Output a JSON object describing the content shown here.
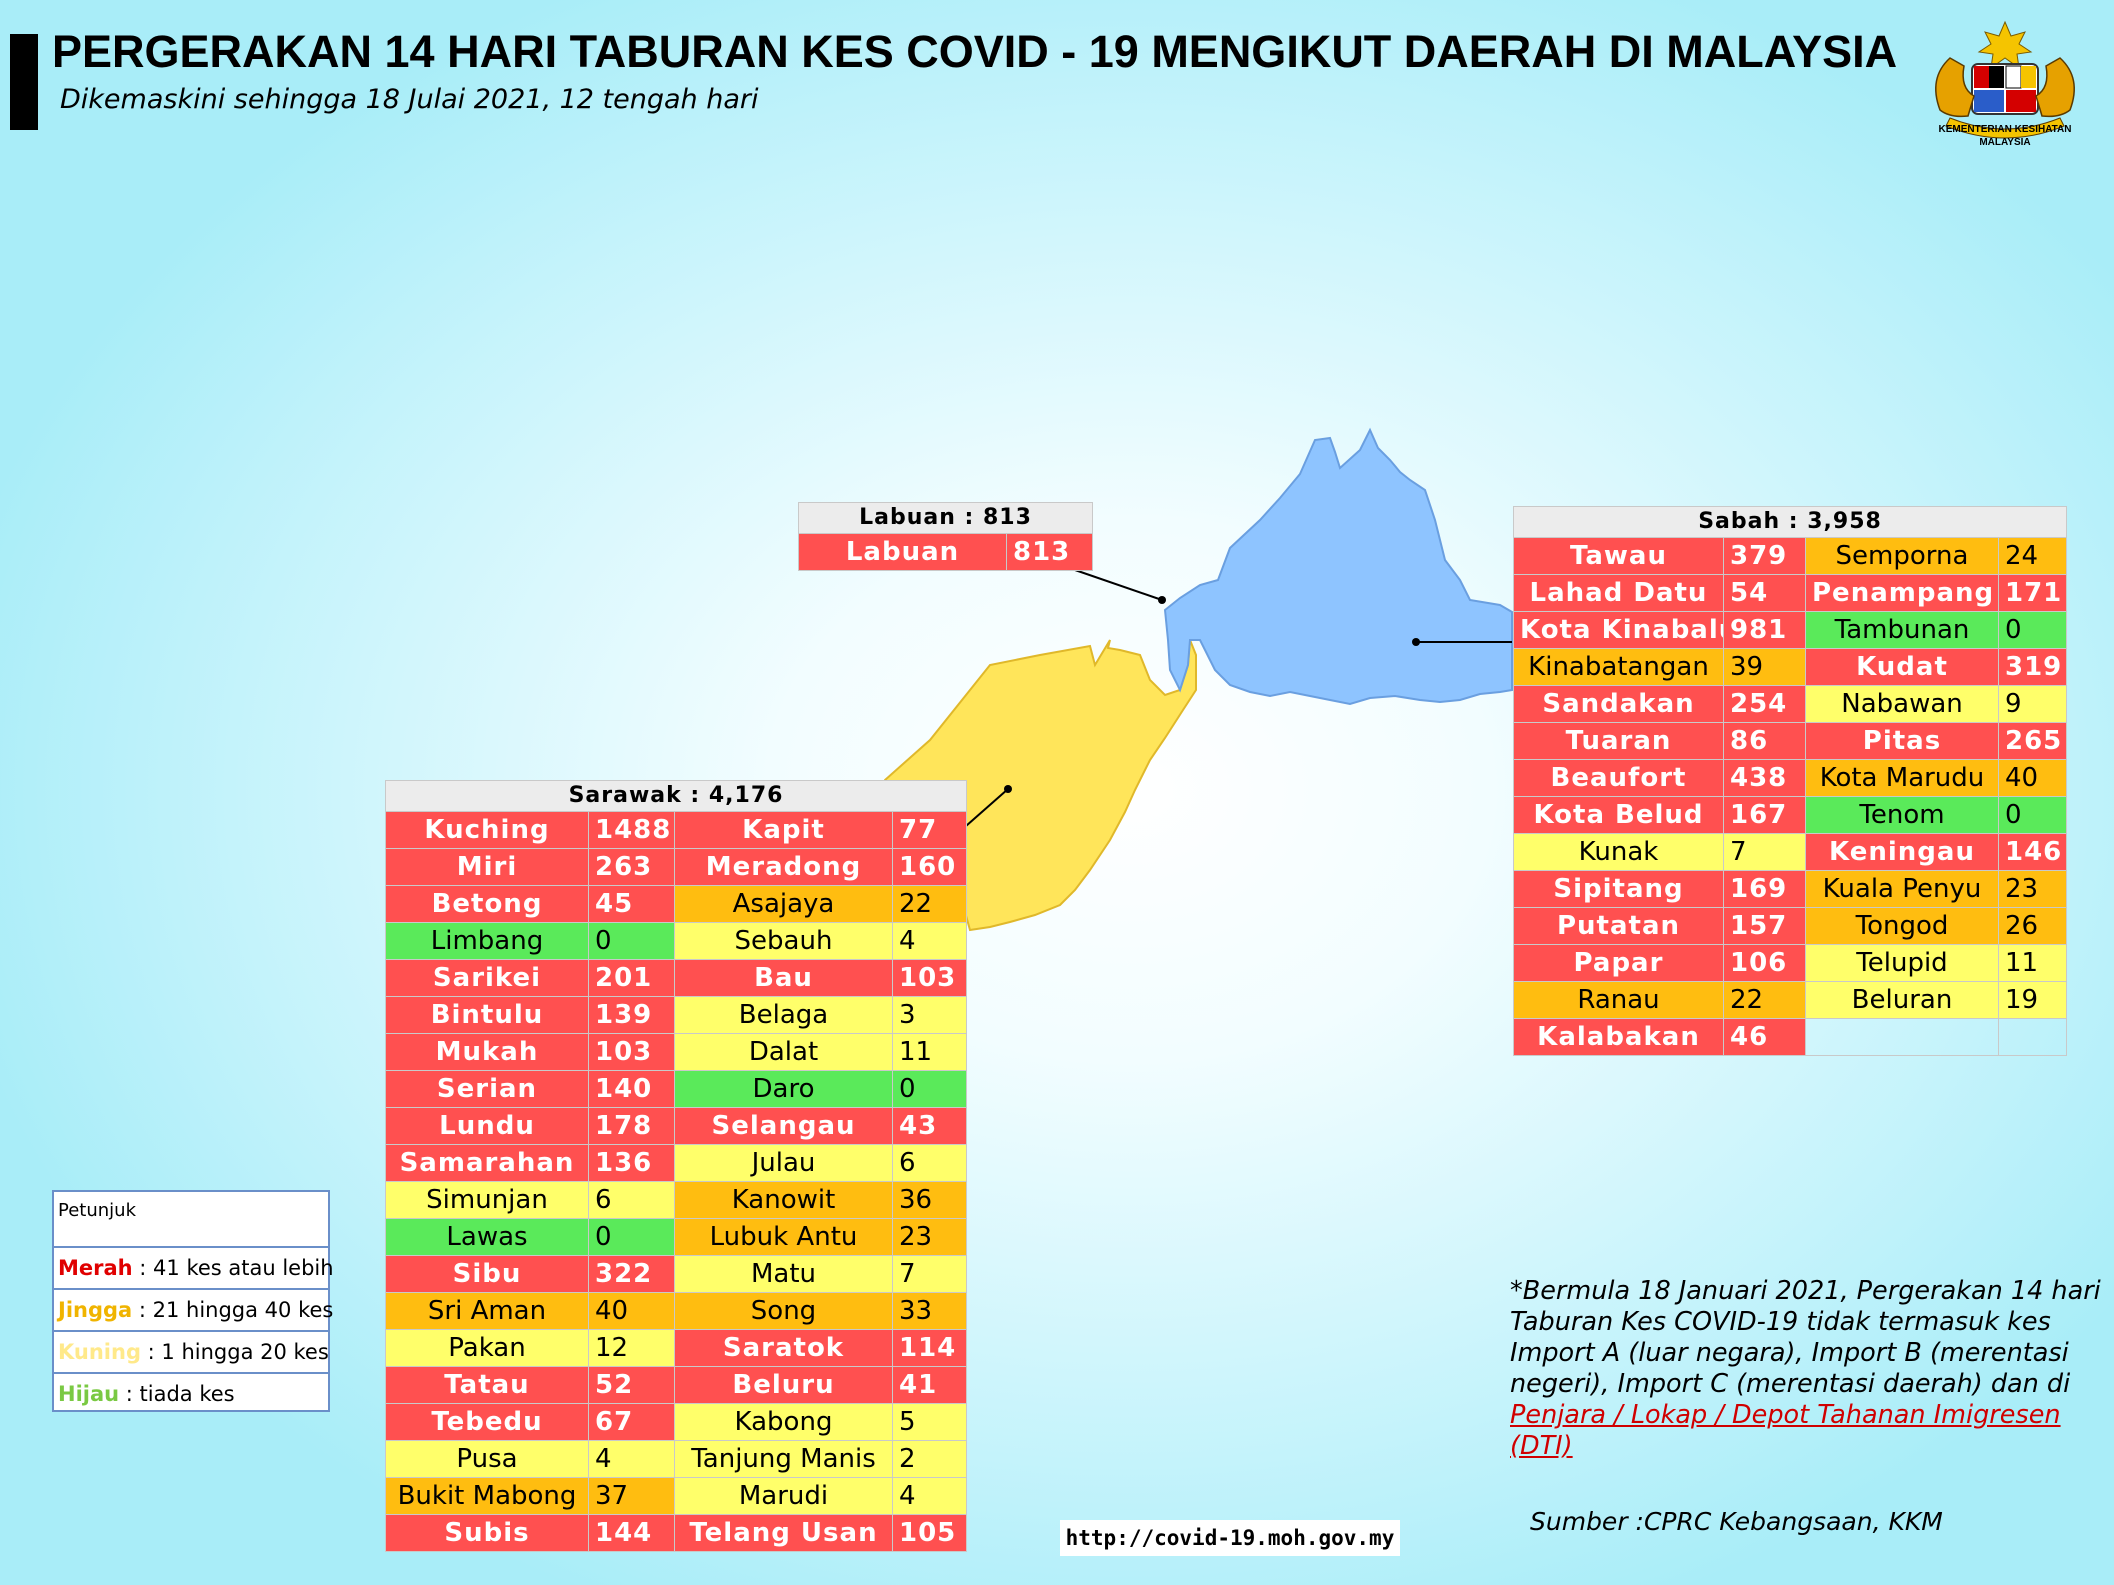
{
  "header": {
    "title": "PERGERAKAN 14 HARI TABURAN KES COVID - 19 MENGIKUT DAERAH DI MALAYSIA",
    "subtitle": "Dikemaskini sehingga 18 Julai 2021, 12 tengah hari",
    "logo_caption_1": "KEMENTERIAN KESIHATAN",
    "logo_caption_2": "MALAYSIA"
  },
  "colors": {
    "red": "#ff5050",
    "orange": "#ffbd10",
    "yellow": "#ffff6a",
    "green": "#5aea5a",
    "sabah_region": "#8ec4ff",
    "sarawak_region": "#ffe55a"
  },
  "labuan": {
    "title": "Labuan : 813",
    "rows": [
      {
        "name": "Labuan",
        "value": "813",
        "level": "r"
      }
    ]
  },
  "sabah": {
    "title": "Sabah : 3,958",
    "rows": [
      {
        "a": "Tawau",
        "av": "379",
        "ac": "r",
        "b": "Semporna",
        "bv": "24",
        "bc": "o"
      },
      {
        "a": "Lahad Datu",
        "av": "54",
        "ac": "r",
        "b": "Penampang",
        "bv": "171",
        "bc": "r"
      },
      {
        "a": "Kota Kinabalu",
        "av": "981",
        "ac": "r",
        "b": "Tambunan",
        "bv": "0",
        "bc": "g"
      },
      {
        "a": "Kinabatangan",
        "av": "39",
        "ac": "o",
        "b": "Kudat",
        "bv": "319",
        "bc": "r"
      },
      {
        "a": "Sandakan",
        "av": "254",
        "ac": "r",
        "b": "Nabawan",
        "bv": "9",
        "bc": "y"
      },
      {
        "a": "Tuaran",
        "av": "86",
        "ac": "r",
        "b": "Pitas",
        "bv": "265",
        "bc": "r"
      },
      {
        "a": "Beaufort",
        "av": "438",
        "ac": "r",
        "b": "Kota Marudu",
        "bv": "40",
        "bc": "o"
      },
      {
        "a": "Kota Belud",
        "av": "167",
        "ac": "r",
        "b": "Tenom",
        "bv": "0",
        "bc": "g"
      },
      {
        "a": "Kunak",
        "av": "7",
        "ac": "y",
        "b": "Keningau",
        "bv": "146",
        "bc": "r"
      },
      {
        "a": "Sipitang",
        "av": "169",
        "ac": "r",
        "b": "Kuala Penyu",
        "bv": "23",
        "bc": "o"
      },
      {
        "a": "Putatan",
        "av": "157",
        "ac": "r",
        "b": "Tongod",
        "bv": "26",
        "bc": "o"
      },
      {
        "a": "Papar",
        "av": "106",
        "ac": "r",
        "b": "Telupid",
        "bv": "11",
        "bc": "y"
      },
      {
        "a": "Ranau",
        "av": "22",
        "ac": "o",
        "b": "Beluran",
        "bv": "19",
        "bc": "y"
      },
      {
        "a": "Kalabakan",
        "av": "46",
        "ac": "r",
        "b": "",
        "bv": "",
        "bc": "e"
      }
    ]
  },
  "sarawak": {
    "title": "Sarawak : 4,176",
    "rows": [
      {
        "a": "Kuching",
        "av": "1488",
        "ac": "r",
        "b": "Kapit",
        "bv": "77",
        "bc": "r"
      },
      {
        "a": "Miri",
        "av": "263",
        "ac": "r",
        "b": "Meradong",
        "bv": "160",
        "bc": "r"
      },
      {
        "a": "Betong",
        "av": "45",
        "ac": "r",
        "b": "Asajaya",
        "bv": "22",
        "bc": "o"
      },
      {
        "a": "Limbang",
        "av": "0",
        "ac": "g",
        "b": "Sebauh",
        "bv": "4",
        "bc": "y"
      },
      {
        "a": "Sarikei",
        "av": "201",
        "ac": "r",
        "b": "Bau",
        "bv": "103",
        "bc": "r"
      },
      {
        "a": "Bintulu",
        "av": "139",
        "ac": "r",
        "b": "Belaga",
        "bv": "3",
        "bc": "y"
      },
      {
        "a": "Mukah",
        "av": "103",
        "ac": "r",
        "b": "Dalat",
        "bv": "11",
        "bc": "y"
      },
      {
        "a": "Serian",
        "av": "140",
        "ac": "r",
        "b": "Daro",
        "bv": "0",
        "bc": "g"
      },
      {
        "a": "Lundu",
        "av": "178",
        "ac": "r",
        "b": "Selangau",
        "bv": "43",
        "bc": "r"
      },
      {
        "a": "Samarahan",
        "av": "136",
        "ac": "r",
        "b": "Julau",
        "bv": "6",
        "bc": "y"
      },
      {
        "a": "Simunjan",
        "av": "6",
        "ac": "y",
        "b": "Kanowit",
        "bv": "36",
        "bc": "o"
      },
      {
        "a": "Lawas",
        "av": "0",
        "ac": "g",
        "b": "Lubuk Antu",
        "bv": "23",
        "bc": "o"
      },
      {
        "a": "Sibu",
        "av": "322",
        "ac": "r",
        "b": "Matu",
        "bv": "7",
        "bc": "y"
      },
      {
        "a": "Sri Aman",
        "av": "40",
        "ac": "o",
        "b": "Song",
        "bv": "33",
        "bc": "o"
      },
      {
        "a": "Pakan",
        "av": "12",
        "ac": "y",
        "b": "Saratok",
        "bv": "114",
        "bc": "r"
      },
      {
        "a": "Tatau",
        "av": "52",
        "ac": "r",
        "b": "Beluru",
        "bv": "41",
        "bc": "r"
      },
      {
        "a": "Tebedu",
        "av": "67",
        "ac": "r",
        "b": "Kabong",
        "bv": "5",
        "bc": "y"
      },
      {
        "a": "Pusa",
        "av": "4",
        "ac": "y",
        "b": "Tanjung Manis",
        "bv": "2",
        "bc": "y"
      },
      {
        "a": "Bukit Mabong",
        "av": "37",
        "ac": "o",
        "b": "Marudi",
        "bv": "4",
        "bc": "y"
      },
      {
        "a": "Subis",
        "av": "144",
        "ac": "r",
        "b": "Telang Usan",
        "bv": "105",
        "bc": "r"
      }
    ]
  },
  "legend": {
    "title": "Petunjuk",
    "items": [
      {
        "key": "Merah",
        "text": " : 41 kes atau lebih",
        "color": "#e00000"
      },
      {
        "key": "Jingga",
        "text": " : 21 hingga 40 kes",
        "color": "#f0b400"
      },
      {
        "key": "Kuning",
        "text": " : 1 hingga 20 kes",
        "color": "#ffe98a"
      },
      {
        "key": "Hijau",
        "text": " : tiada kes",
        "color": "#7ac943"
      }
    ]
  },
  "note": {
    "text": "*Bermula 18 Januari 2021, Pergerakan 14 hari Taburan Kes COVID-19 tidak termasuk kes Import A (luar negara), Import B (merentasi negeri), Import C (merentasi daerah) dan di ",
    "underlined": "Penjara / Lokap / Depot Tahanan Imigresen (DTI)"
  },
  "source": "Sumber :CPRC Kebangsaan,  KKM",
  "url": "http://covid-19.moh.gov.my"
}
